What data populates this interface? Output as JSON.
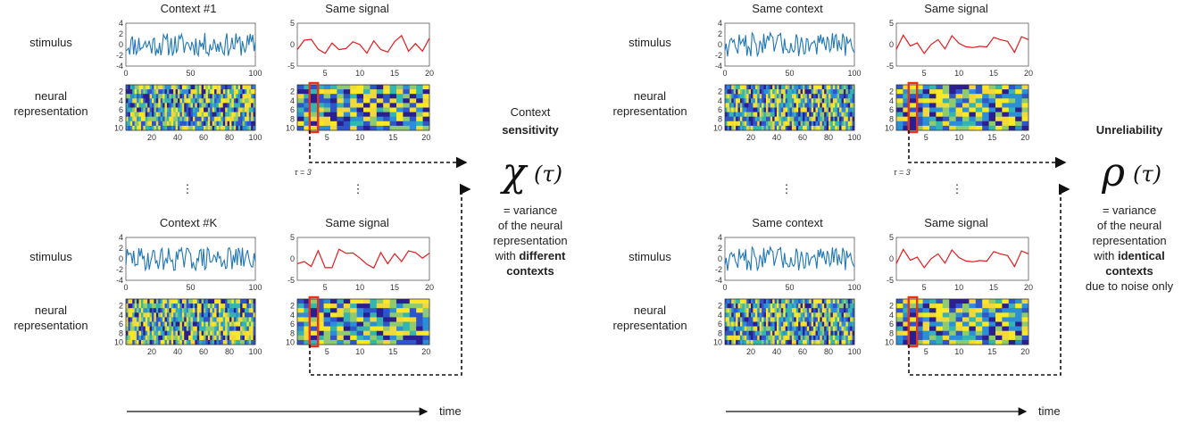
{
  "panels": [
    {
      "rows": [
        {
          "context_title": "Context #1",
          "signal_title": "Same signal",
          "seed": 11,
          "dot": false
        },
        {
          "context_title": "",
          "signal_title": "",
          "seed": 0,
          "dot": true
        },
        {
          "context_title": "Context #K",
          "signal_title": "Same signal",
          "seed": 29,
          "dot": false
        }
      ],
      "row_labels": {
        "stimulus": "stimulus",
        "neural_1": "neural",
        "neural_2": "representation"
      },
      "tau_label": "τ = 3",
      "measure": {
        "heading_pre": "Context",
        "heading_bold": "sensitivity",
        "symbol": "χ",
        "arg": "(τ)",
        "description": [
          {
            "text": "= variance",
            "bold": false
          },
          {
            "text": "of the neural",
            "bold": false
          },
          {
            "text": "representation",
            "bold": false
          },
          {
            "text": "with",
            "bold": false,
            "tail_bold": "different"
          },
          {
            "text": "contexts",
            "bold": true
          }
        ]
      },
      "time_label": "time"
    },
    {
      "rows": [
        {
          "context_title": "Same context",
          "signal_title": "Same signal",
          "seed": 47,
          "dot": false
        },
        {
          "context_title": "",
          "signal_title": "",
          "seed": 0,
          "dot": true
        },
        {
          "context_title": "Same context",
          "signal_title": "Same signal",
          "seed": 47,
          "dot": false
        }
      ],
      "row_labels": {
        "stimulus": "stimulus",
        "neural_1": "neural",
        "neural_2": "representation"
      },
      "tau_label": "τ = 3",
      "measure": {
        "heading_pre": "",
        "heading_bold": "Unreliability",
        "symbol": "ρ",
        "arg": "(τ)",
        "description": [
          {
            "text": "= variance",
            "bold": false
          },
          {
            "text": "of the neural",
            "bold": false
          },
          {
            "text": "representation",
            "bold": false
          },
          {
            "text": "with",
            "bold": false,
            "tail_bold": "identical"
          },
          {
            "text": "contexts",
            "bold": true
          },
          {
            "text": "due to noise only",
            "bold": false
          }
        ]
      },
      "time_label": "time"
    }
  ],
  "axes": {
    "stim_long": {
      "x_ticks": [
        "0",
        "50",
        "100"
      ],
      "y_ticks": [
        "4",
        "2",
        "0",
        "-2",
        "-4"
      ]
    },
    "stim_short": {
      "x_ticks": [
        "5",
        "10",
        "15",
        "20"
      ],
      "y_ticks": [
        "5",
        "0",
        "-5"
      ]
    },
    "heat_long": {
      "x_ticks": [
        "20",
        "40",
        "60",
        "80",
        "100"
      ],
      "y_ticks": [
        "2",
        "4",
        "6",
        "8",
        "10"
      ]
    },
    "heat_short": {
      "x_ticks": [
        "5",
        "10",
        "15",
        "20"
      ],
      "y_ticks": [
        "2",
        "4",
        "6",
        "8",
        "10"
      ]
    }
  },
  "colors": {
    "stimulus_line": "#1f77b4",
    "signal_line": "#e41a1c",
    "highlight_box": "#e8321e",
    "heat_palette": [
      "#2b1f8f",
      "#2f56c9",
      "#2c8fd6",
      "#35b5b0",
      "#8fca6e",
      "#f1d93a",
      "#fbe825"
    ]
  }
}
